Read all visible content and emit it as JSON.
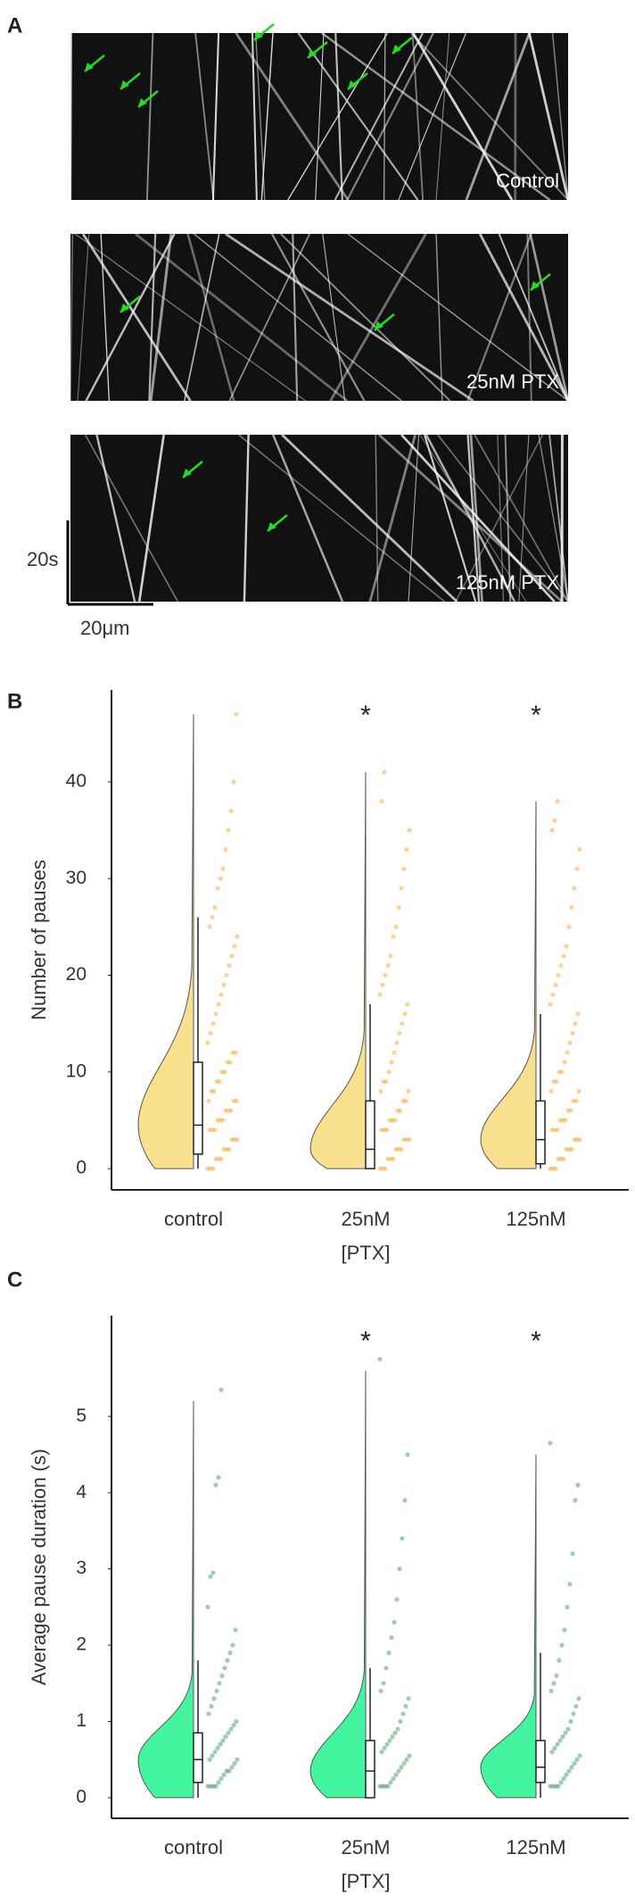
{
  "panels": [
    "A",
    "B",
    "C"
  ],
  "kymographs": {
    "labels": [
      "Control",
      "25nM PTX",
      "125nM PTX"
    ],
    "scale_time": "20s",
    "scale_length": "20μm"
  },
  "chart_data": [
    {
      "type": "raincloud",
      "ylabel": "Number of pauses",
      "xlabel": "[PTX]",
      "categories": [
        "control",
        "25nM",
        "125nM"
      ],
      "significance": [
        null,
        "*",
        "*"
      ],
      "ylim": [
        -2.2,
        49.5
      ],
      "yticks": [
        0,
        10,
        20,
        30,
        40
      ],
      "color": "#f8e08e",
      "point_color": "#f0a020",
      "boxes": [
        {
          "min": 0,
          "q1": 1.5,
          "median": 4.5,
          "q3": 11,
          "whisker_high": 26,
          "max": 47
        },
        {
          "min": 0,
          "q1": 0,
          "median": 2,
          "q3": 7,
          "whisker_high": 17,
          "max": 41
        },
        {
          "min": 0,
          "q1": 0.5,
          "median": 3,
          "q3": 7,
          "whisker_high": 16,
          "max": 38
        }
      ],
      "points": [
        [
          0,
          0,
          0,
          1,
          1,
          1,
          2,
          2,
          2,
          3,
          3,
          3,
          4,
          4,
          4,
          5,
          5,
          5,
          6,
          6,
          6,
          7,
          7,
          7,
          8,
          8,
          9,
          9,
          10,
          10,
          11,
          11,
          12,
          12,
          13,
          14,
          15,
          16,
          17,
          18,
          19,
          20,
          21,
          22,
          23,
          24,
          25,
          26,
          27,
          29,
          30,
          31,
          33,
          35,
          37,
          40,
          47
        ],
        [
          0,
          0,
          0,
          1,
          1,
          1,
          2,
          2,
          2,
          3,
          3,
          3,
          4,
          4,
          4,
          5,
          5,
          5,
          6,
          6,
          7,
          7,
          8,
          8,
          9,
          9,
          10,
          11,
          12,
          13,
          14,
          15,
          16,
          17,
          18,
          19,
          20,
          21,
          22,
          24,
          25,
          27,
          29,
          31,
          33,
          35,
          38,
          41
        ],
        [
          0,
          0,
          0,
          1,
          1,
          1,
          2,
          2,
          2,
          3,
          3,
          3,
          4,
          4,
          4,
          5,
          5,
          5,
          6,
          6,
          7,
          7,
          8,
          8,
          9,
          9,
          10,
          10,
          11,
          12,
          13,
          14,
          15,
          16,
          17,
          18,
          19,
          20,
          21,
          22,
          23,
          25,
          27,
          29,
          31,
          33,
          35,
          36,
          38
        ]
      ]
    },
    {
      "type": "raincloud",
      "ylabel": "Average pause duration (s)",
      "xlabel": "[PTX]",
      "categories": [
        "control",
        "25nM",
        "125nM"
      ],
      "significance": [
        null,
        "*",
        "*"
      ],
      "ylim": [
        -0.27,
        6.32
      ],
      "yticks": [
        0,
        1,
        2,
        3,
        4,
        5
      ],
      "color": "#44f5a0",
      "point_color": "#2e8b57",
      "boxes": [
        {
          "min": 0,
          "q1": 0.2,
          "median": 0.5,
          "q3": 0.85,
          "whisker_high": 1.8,
          "max": 5.2
        },
        {
          "min": 0,
          "q1": 0,
          "median": 0.35,
          "q3": 0.75,
          "whisker_high": 1.7,
          "max": 5.6
        },
        {
          "min": 0,
          "q1": 0.2,
          "median": 0.4,
          "q3": 0.75,
          "whisker_high": 1.9,
          "max": 4.5
        }
      ],
      "points": [
        [
          0.15,
          0.15,
          0.15,
          0.15,
          0.2,
          0.25,
          0.3,
          0.35,
          0.35,
          0.4,
          0.45,
          0.5,
          0.5,
          0.55,
          0.6,
          0.65,
          0.7,
          0.75,
          0.8,
          0.85,
          0.9,
          0.95,
          1.0,
          1.1,
          1.2,
          1.3,
          1.4,
          1.5,
          1.6,
          1.7,
          1.8,
          1.9,
          2.0,
          2.2,
          2.5,
          2.9,
          2.95,
          4.1,
          4.2,
          5.35
        ],
        [
          0.15,
          0.15,
          0.15,
          0.15,
          0.2,
          0.25,
          0.3,
          0.35,
          0.4,
          0.45,
          0.5,
          0.55,
          0.6,
          0.65,
          0.7,
          0.75,
          0.8,
          0.85,
          0.9,
          1.0,
          1.1,
          1.2,
          1.3,
          1.4,
          1.5,
          1.7,
          1.9,
          2.1,
          2.3,
          2.6,
          3.0,
          3.4,
          3.9,
          4.5,
          5.75
        ],
        [
          0.15,
          0.15,
          0.15,
          0.15,
          0.2,
          0.25,
          0.3,
          0.35,
          0.4,
          0.45,
          0.5,
          0.55,
          0.6,
          0.65,
          0.7,
          0.75,
          0.8,
          0.85,
          0.9,
          1.0,
          1.1,
          1.2,
          1.3,
          1.4,
          1.5,
          1.6,
          1.8,
          2.0,
          2.2,
          2.5,
          2.8,
          3.2,
          3.9,
          4.1,
          4.65
        ]
      ]
    }
  ]
}
